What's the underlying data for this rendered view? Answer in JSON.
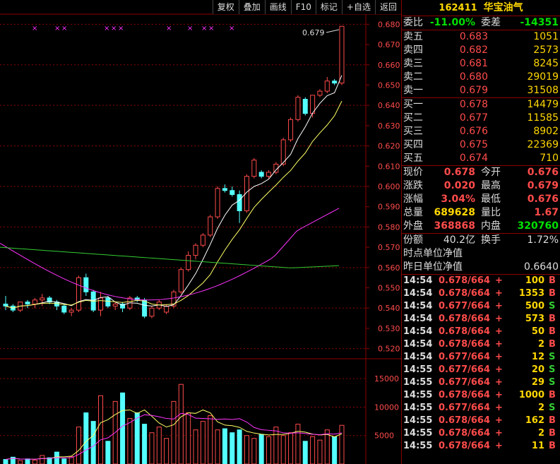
{
  "toolbar": {
    "items": [
      "复权",
      "叠加",
      "画线",
      "F10",
      "标记",
      "+自选",
      "返回"
    ]
  },
  "chart": {
    "price_axis": [
      "0.680",
      "0.670",
      "0.660",
      "0.650",
      "0.640",
      "0.630",
      "0.620",
      "0.610",
      "0.600",
      "0.590",
      "0.580",
      "0.570",
      "0.560",
      "0.550",
      "0.540",
      "0.530",
      "0.520"
    ],
    "last_price_label": "0.679",
    "volume_axis": [
      "15000",
      "10000",
      "5000"
    ]
  },
  "chart_data": {
    "type": "candlestick",
    "price_range": [
      0.515,
      0.685
    ],
    "candles": [
      [
        0.542,
        0.546,
        0.539,
        0.541
      ],
      [
        0.541,
        0.542,
        0.538,
        0.539
      ],
      [
        0.539,
        0.543,
        0.538,
        0.543
      ],
      [
        0.543,
        0.544,
        0.54,
        0.542
      ],
      [
        0.542,
        0.545,
        0.54,
        0.544
      ],
      [
        0.544,
        0.547,
        0.541,
        0.545
      ],
      [
        0.545,
        0.546,
        0.542,
        0.543
      ],
      [
        0.543,
        0.544,
        0.539,
        0.541
      ],
      [
        0.541,
        0.542,
        0.537,
        0.538
      ],
      [
        0.538,
        0.54,
        0.536,
        0.539
      ],
      [
        0.539,
        0.556,
        0.538,
        0.555
      ],
      [
        0.555,
        0.557,
        0.546,
        0.548
      ],
      [
        0.548,
        0.549,
        0.538,
        0.539
      ],
      [
        0.539,
        0.548,
        0.536,
        0.545
      ],
      [
        0.545,
        0.546,
        0.54,
        0.541
      ],
      [
        0.541,
        0.543,
        0.539,
        0.542
      ],
      [
        0.542,
        0.543,
        0.538,
        0.54
      ],
      [
        0.54,
        0.546,
        0.539,
        0.545
      ],
      [
        0.545,
        0.546,
        0.543,
        0.544
      ],
      [
        0.544,
        0.545,
        0.535,
        0.536
      ],
      [
        0.536,
        0.541,
        0.535,
        0.54
      ],
      [
        0.54,
        0.544,
        0.539,
        0.543
      ],
      [
        0.538,
        0.542,
        0.537,
        0.541
      ],
      [
        0.541,
        0.549,
        0.54,
        0.548
      ],
      [
        0.548,
        0.56,
        0.547,
        0.559
      ],
      [
        0.559,
        0.568,
        0.558,
        0.566
      ],
      [
        0.566,
        0.572,
        0.564,
        0.571
      ],
      [
        0.571,
        0.577,
        0.57,
        0.576
      ],
      [
        0.576,
        0.586,
        0.575,
        0.585
      ],
      [
        0.585,
        0.6,
        0.584,
        0.599
      ],
      [
        0.599,
        0.601,
        0.597,
        0.598
      ],
      [
        0.598,
        0.6,
        0.595,
        0.596
      ],
      [
        0.596,
        0.598,
        0.582,
        0.588
      ],
      [
        0.588,
        0.606,
        0.587,
        0.605
      ],
      [
        0.605,
        0.614,
        0.604,
        0.613
      ],
      [
        0.607,
        0.608,
        0.604,
        0.605
      ],
      [
        0.605,
        0.608,
        0.604,
        0.607
      ],
      [
        0.607,
        0.612,
        0.606,
        0.611
      ],
      [
        0.611,
        0.624,
        0.61,
        0.623
      ],
      [
        0.623,
        0.634,
        0.622,
        0.633
      ],
      [
        0.633,
        0.645,
        0.632,
        0.644
      ],
      [
        0.643,
        0.644,
        0.635,
        0.636
      ],
      [
        0.636,
        0.645,
        0.634,
        0.645
      ],
      [
        0.645,
        0.648,
        0.644,
        0.647
      ],
      [
        0.647,
        0.654,
        0.646,
        0.652
      ],
      [
        0.652,
        0.653,
        0.65,
        0.651
      ],
      [
        0.651,
        0.679,
        0.65,
        0.679
      ]
    ],
    "volume": [
      800,
      1200,
      600,
      900,
      700,
      1500,
      1100,
      2100,
      900,
      1300,
      6500,
      9000,
      7500,
      12000,
      4000,
      11000,
      12500,
      8000,
      9000,
      7000,
      5500,
      6500,
      4500,
      11000,
      14000,
      9000,
      6000,
      7500,
      8500,
      6000,
      6200,
      5500,
      6000,
      5000,
      4500,
      5200,
      4800,
      6500,
      5000,
      5500,
      7000,
      4000,
      4800,
      4200,
      6000,
      4800,
      6800
    ],
    "volume_ylim": [
      0,
      18000
    ]
  },
  "stock": {
    "code": "162411",
    "name": "华宝油气"
  },
  "order_ratio": {
    "label1": "委比",
    "value1": "-11.00%",
    "label2": "委差",
    "value2": "-14351"
  },
  "asks": [
    {
      "label": "卖五",
      "price": "0.683",
      "qty": "1051"
    },
    {
      "label": "卖四",
      "price": "0.682",
      "qty": "2573"
    },
    {
      "label": "卖三",
      "price": "0.681",
      "qty": "8245"
    },
    {
      "label": "卖二",
      "price": "0.680",
      "qty": "29019"
    },
    {
      "label": "卖一",
      "price": "0.679",
      "qty": "31508"
    }
  ],
  "bids": [
    {
      "label": "买一",
      "price": "0.678",
      "qty": "14479"
    },
    {
      "label": "买二",
      "price": "0.677",
      "qty": "11585"
    },
    {
      "label": "买三",
      "price": "0.676",
      "qty": "8902"
    },
    {
      "label": "买四",
      "price": "0.675",
      "qty": "22369"
    },
    {
      "label": "买五",
      "price": "0.674",
      "qty": "710"
    }
  ],
  "quote": [
    {
      "l1": "现价",
      "v1": "0.678",
      "l2": "今开",
      "v2": "0.676"
    },
    {
      "l1": "涨跌",
      "v1": "0.020",
      "l2": "最高",
      "v2": "0.679"
    },
    {
      "l1": "涨幅",
      "v1": "3.04%",
      "l2": "最低",
      "v2": "0.676"
    },
    {
      "l1": "总量",
      "v1": "689628",
      "l2": "量比",
      "v2": "1.67"
    },
    {
      "l1": "外盘",
      "v1": "368868",
      "l2": "内盘",
      "v2": "320760"
    }
  ],
  "fund": {
    "share_label": "份额",
    "share_value": "40.2亿",
    "turnover_label": "换手",
    "turnover_value": "1.72%",
    "nav_now_label": "时点单位净值",
    "nav_now_value": "",
    "nav_prev_label": "昨日单位净值",
    "nav_prev_value": "0.6640"
  },
  "ticks": [
    {
      "time": "14:54",
      "price": "0.678/664",
      "vol": "100",
      "side": "B"
    },
    {
      "time": "14:54",
      "price": "0.678/664",
      "vol": "1353",
      "side": "B"
    },
    {
      "time": "14:54",
      "price": "0.677/664",
      "vol": "500",
      "side": "S"
    },
    {
      "time": "14:54",
      "price": "0.678/664",
      "vol": "573",
      "side": "B"
    },
    {
      "time": "14:54",
      "price": "0.678/664",
      "vol": "50",
      "side": "B"
    },
    {
      "time": "14:54",
      "price": "0.678/664",
      "vol": "2",
      "side": "B"
    },
    {
      "time": "14:54",
      "price": "0.677/664",
      "vol": "12",
      "side": "S"
    },
    {
      "time": "14:55",
      "price": "0.677/664",
      "vol": "20",
      "side": "S"
    },
    {
      "time": "14:55",
      "price": "0.677/664",
      "vol": "29",
      "side": "S"
    },
    {
      "time": "14:55",
      "price": "0.678/664",
      "vol": "1000",
      "side": "B"
    },
    {
      "time": "14:55",
      "price": "0.677/664",
      "vol": "2",
      "side": "S"
    },
    {
      "time": "14:55",
      "price": "0.678/664",
      "vol": "162",
      "side": "B"
    },
    {
      "time": "14:55",
      "price": "0.678/664",
      "vol": "2",
      "side": "B"
    },
    {
      "time": "14:55",
      "price": "0.678/664",
      "vol": "11",
      "side": "B"
    }
  ],
  "colors": {
    "up": "#ff4b4b",
    "down": "#54ffff",
    "ma5": "#ffffff",
    "ma10": "#ffff66",
    "ma20": "#ff33ff",
    "ma60": "#33cc33",
    "grid": "#8b0000"
  }
}
